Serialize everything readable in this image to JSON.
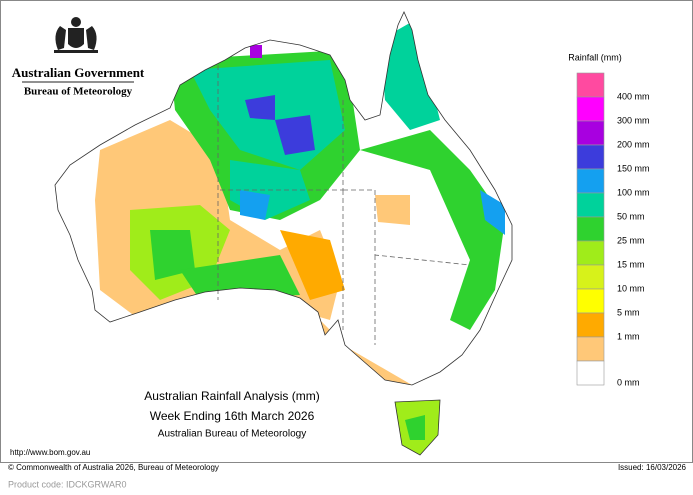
{
  "header": {
    "government": "Australian Government",
    "bureau": "Bureau of Meteorology"
  },
  "legend": {
    "title": "Rainfall (mm)",
    "colors": [
      "#ff4aa0",
      "#ff00ff",
      "#a800e0",
      "#3c3cdc",
      "#14a0f0",
      "#00d29b",
      "#2fd22f",
      "#a0ec1a",
      "#d7f21a",
      "#ffff00",
      "#ffaa00",
      "#ffc878",
      "#ffffff"
    ],
    "labels": [
      "400 mm",
      "300 mm",
      "200 mm",
      "150 mm",
      "100 mm",
      "50 mm",
      "25 mm",
      "15 mm",
      "10 mm",
      "5 mm",
      "1 mm",
      "0 mm"
    ]
  },
  "map_title": {
    "line1": "Australian Rainfall Analysis (mm)",
    "line2": "Week Ending 16th March 2026",
    "line3": "Australian Bureau of Meteorology"
  },
  "url": "http://www.bom.gov.au",
  "footer": {
    "copyright": "© Commonwealth of Australia 2026, Bureau of Meteorology",
    "issued": "Issued: 16/03/2026"
  },
  "product_code": "Product code: IDCKGRWAR0"
}
